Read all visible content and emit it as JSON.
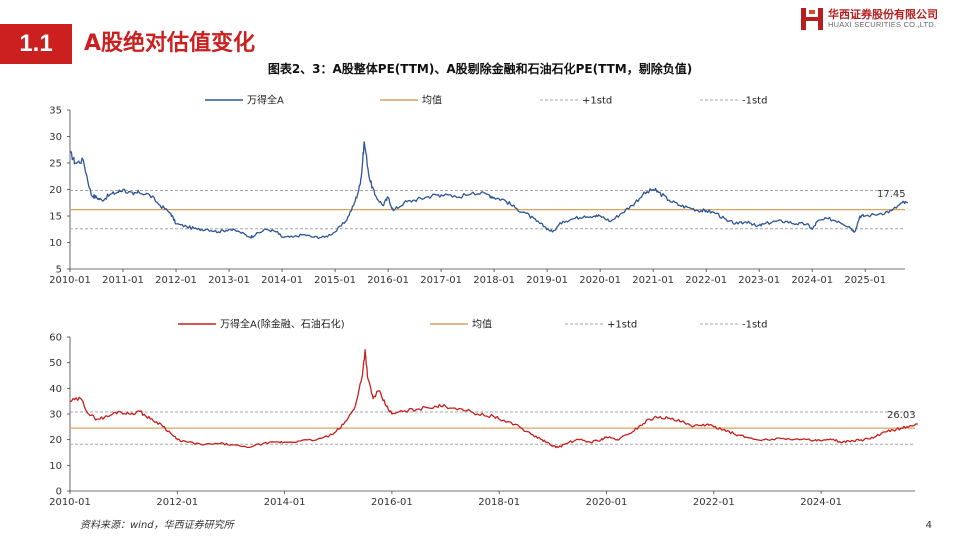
{
  "header": {
    "section_number": "1.1",
    "section_title": "A股绝对估值变化",
    "logo_cn": "华西证券股份有限公司",
    "logo_en": "HUAXI SECURITIES CO.,LTD."
  },
  "figure_title": "图表2、3：A股整体PE(TTM)、A股剔除金融和石油石化PE(TTM，剔除负值)",
  "footer": {
    "source": "资料来源：wind，华西证券研究所",
    "page_number": "4"
  },
  "colors": {
    "accent": "#cc1f1f",
    "series_top": "#2e5597",
    "series_bottom": "#c9201d",
    "mean": "#d9a55c",
    "std": "#a6a6a6"
  },
  "chart_data": [
    {
      "type": "line",
      "title": "",
      "x_start": "2010-01",
      "x_end": "2025-10",
      "xticks": [
        "2010-01",
        "2011-01",
        "2012-01",
        "2013-01",
        "2014-01",
        "2015-01",
        "2016-01",
        "2017-01",
        "2018-01",
        "2019-01",
        "2020-01",
        "2021-01",
        "2022-01",
        "2023-01",
        "2024-01",
        "2025-01"
      ],
      "ylim": [
        5,
        35
      ],
      "yticks": [
        "5",
        "10",
        "15",
        "20",
        "25",
        "30",
        "35"
      ],
      "legend": [
        "万得全A",
        "均值",
        "+1std",
        "-1std"
      ],
      "mean": 16.2,
      "plus_std": 19.8,
      "minus_std": 12.6,
      "last_value_label": "17.45",
      "series": [
        {
          "name": "万得全A",
          "x": [
            2010.0,
            2010.1,
            2010.25,
            2010.4,
            2010.5,
            2010.6,
            2010.75,
            2010.9,
            2011.0,
            2011.2,
            2011.3,
            2011.5,
            2011.7,
            2011.9,
            2012.0,
            2012.2,
            2012.4,
            2012.6,
            2012.8,
            2013.0,
            2013.2,
            2013.4,
            2013.5,
            2013.7,
            2013.9,
            2014.0,
            2014.2,
            2014.4,
            2014.6,
            2014.8,
            2015.0,
            2015.2,
            2015.35,
            2015.45,
            2015.5,
            2015.55,
            2015.65,
            2015.75,
            2015.9,
            2016.0,
            2016.1,
            2016.3,
            2016.5,
            2016.7,
            2016.9,
            2017.0,
            2017.3,
            2017.6,
            2017.9,
            2018.0,
            2018.2,
            2018.4,
            2018.6,
            2018.8,
            2018.95,
            2019.1,
            2019.3,
            2019.5,
            2019.7,
            2019.9,
            2020.0,
            2020.2,
            2020.4,
            2020.6,
            2020.8,
            2021.0,
            2021.1,
            2021.3,
            2021.5,
            2021.7,
            2021.9,
            2022.0,
            2022.2,
            2022.4,
            2022.6,
            2022.8,
            2022.95,
            2023.1,
            2023.3,
            2023.5,
            2023.7,
            2023.9,
            2024.0,
            2024.1,
            2024.3,
            2024.5,
            2024.7,
            2024.8,
            2024.9,
            2025.0,
            2025.3,
            2025.5,
            2025.7,
            2025.8
          ],
          "values": [
            27,
            25,
            25.5,
            19,
            18.5,
            18,
            19,
            19.5,
            20,
            19,
            19.5,
            19,
            17,
            15.5,
            13.5,
            13,
            12.5,
            12.5,
            12,
            12.5,
            12,
            11,
            11.5,
            12.5,
            12,
            11,
            11,
            11.5,
            11,
            11,
            12,
            14,
            17,
            20,
            23,
            29,
            22,
            19,
            17,
            18.5,
            16,
            17.5,
            18,
            18.5,
            19,
            19,
            18.5,
            19.5,
            19,
            18.5,
            18,
            16.5,
            15.5,
            14,
            13,
            12,
            14,
            14.5,
            15,
            15,
            15,
            14,
            15.5,
            17,
            19,
            20,
            19.5,
            18,
            17,
            16.5,
            16,
            16,
            15.5,
            14,
            13.5,
            14,
            13,
            13.5,
            14,
            14,
            13.5,
            13.5,
            12.5,
            14,
            14.5,
            14,
            13,
            12,
            15,
            15,
            15.5,
            16,
            17.5,
            17.45
          ]
        }
      ]
    },
    {
      "type": "line",
      "title": "",
      "x_start": "2010-01",
      "x_end": "2025-10",
      "xticks": [
        "2010-01",
        "2012-01",
        "2014-01",
        "2016-01",
        "2018-01",
        "2020-01",
        "2022-01",
        "2024-01"
      ],
      "ylim": [
        0,
        60
      ],
      "yticks": [
        "0",
        "10",
        "20",
        "30",
        "40",
        "50",
        "60"
      ],
      "legend": [
        "万得全A(除金融、石油石化)",
        "均值",
        "+1std",
        "-1std"
      ],
      "mean": 24.5,
      "plus_std": 30.8,
      "minus_std": 18.2,
      "last_value_label": "26.03",
      "series": [
        {
          "name": "万得全A(除金融、石油石化)",
          "x": [
            2010.0,
            2010.2,
            2010.35,
            2010.5,
            2010.7,
            2010.9,
            2011.1,
            2011.3,
            2011.5,
            2011.7,
            2011.9,
            2012.0,
            2012.2,
            2012.5,
            2012.8,
            2013.0,
            2013.3,
            2013.6,
            2013.9,
            2014.0,
            2014.3,
            2014.6,
            2014.9,
            2015.1,
            2015.3,
            2015.45,
            2015.5,
            2015.55,
            2015.65,
            2015.75,
            2015.9,
            2016.0,
            2016.2,
            2016.5,
            2016.8,
            2017.0,
            2017.3,
            2017.6,
            2017.9,
            2018.0,
            2018.3,
            2018.6,
            2018.8,
            2018.95,
            2019.1,
            2019.3,
            2019.5,
            2019.7,
            2019.9,
            2020.0,
            2020.2,
            2020.4,
            2020.6,
            2020.8,
            2021.0,
            2021.2,
            2021.4,
            2021.6,
            2021.8,
            2022.0,
            2022.2,
            2022.4,
            2022.6,
            2022.8,
            2023.0,
            2023.3,
            2023.6,
            2023.9,
            2024.0,
            2024.2,
            2024.4,
            2024.6,
            2024.8,
            2025.0,
            2025.2,
            2025.4,
            2025.6,
            2025.8
          ],
          "values": [
            35,
            36,
            30,
            28,
            29,
            31,
            30,
            31,
            28,
            26,
            22,
            20,
            19,
            18,
            18.5,
            18,
            17,
            18.5,
            19,
            19,
            19.5,
            20,
            22,
            26,
            32,
            45,
            55,
            44,
            36,
            39,
            33,
            30,
            31,
            32,
            33,
            33,
            32,
            30,
            29,
            28,
            26,
            22,
            20,
            18,
            17,
            19,
            20,
            19,
            20,
            21,
            20,
            22,
            25,
            28,
            29,
            28,
            27,
            25,
            26,
            25,
            24,
            22,
            21,
            20,
            20,
            20.5,
            20,
            20,
            19.5,
            20,
            19,
            19.5,
            20,
            21,
            23,
            24,
            25,
            26.03
          ]
        }
      ]
    }
  ]
}
